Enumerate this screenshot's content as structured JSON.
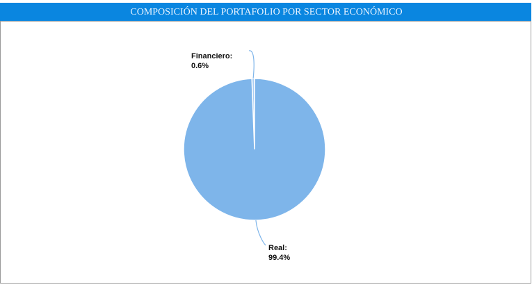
{
  "chart_data": {
    "type": "pie",
    "title": "COMPOSICIÓN DEL PORTAFOLIO POR SECTOR ECONÓMICO",
    "categories": [
      "Financiero:",
      "Real:"
    ],
    "values": [
      0.6,
      99.4
    ],
    "value_labels": [
      "0.6%",
      "99.4%"
    ],
    "colors": [
      "#a9cdf3",
      "#7eb5ea"
    ]
  }
}
